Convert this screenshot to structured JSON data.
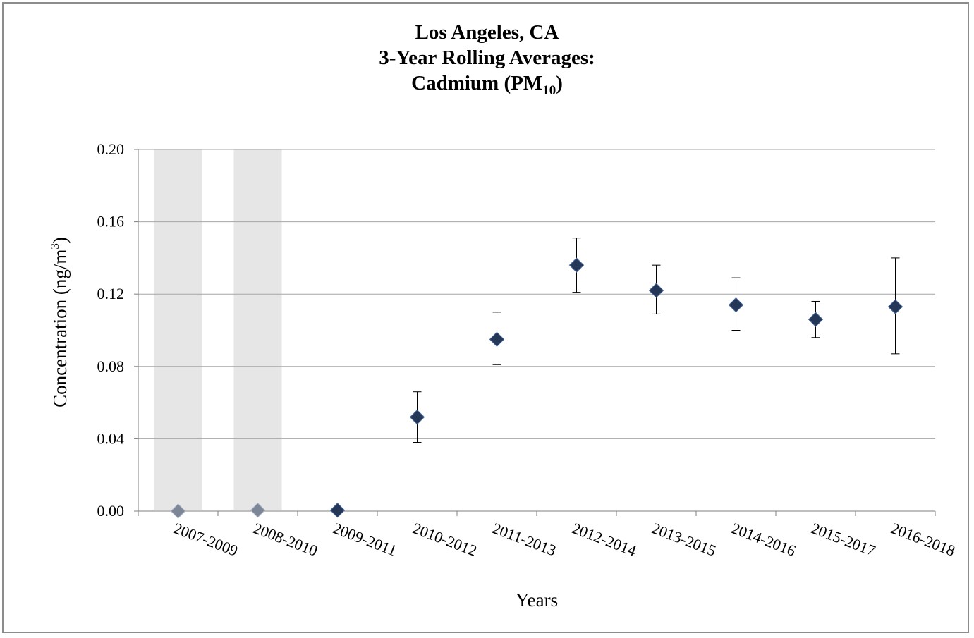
{
  "chart_data": {
    "type": "scatter",
    "title_lines": [
      "Los Angeles, CA",
      "3-Year Rolling Averages:"
    ],
    "title_line3_main": "Cadmium (PM",
    "title_line3_sub": "10",
    "title_line3_end": ")",
    "xlabel": "Years",
    "ylabel_main": "Concentration (ng/m",
    "ylabel_sup": "3",
    "ylabel_end": ")",
    "ylim": [
      0,
      0.2
    ],
    "yticks": [
      "0.00",
      "0.04",
      "0.08",
      "0.12",
      "0.16",
      "0.20"
    ],
    "grid": true,
    "categories": [
      "2007-2009",
      "2008-2010",
      "2009-2011",
      "2010-2012",
      "2011-2013",
      "2012-2014",
      "2013-2015",
      "2014-2016",
      "2015-2017",
      "2016-2018"
    ],
    "values": [
      0.0,
      0.0005,
      0.0005,
      0.052,
      0.095,
      0.136,
      0.122,
      0.114,
      0.106,
      0.113
    ],
    "error_low": [
      null,
      null,
      null,
      0.038,
      0.081,
      0.121,
      0.109,
      0.1,
      0.096,
      0.087
    ],
    "error_high": [
      null,
      null,
      null,
      0.066,
      0.11,
      0.151,
      0.136,
      0.129,
      0.116,
      0.14
    ],
    "shaded_categories": [
      "2007-2009",
      "2008-2010"
    ],
    "colors": {
      "marker": "#243757",
      "marker_faded": "#7d8696",
      "shade": "#e6e6e6",
      "grid": "#a6a6a6"
    }
  }
}
